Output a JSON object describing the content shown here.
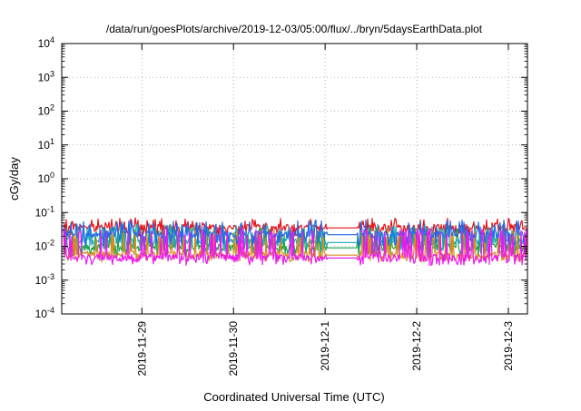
{
  "chart_data": {
    "type": "line",
    "title": "/data/run/goesPlots/archive/2019-12-03/05:00/flux/../bryn/5daysEarthData.plot",
    "xlabel": "Coordinated Universal Time (UTC)",
    "ylabel": "cGy/day",
    "yscale": "log",
    "ylim": [
      0.0001,
      10000
    ],
    "yticks": [
      {
        "value": 0.0001,
        "base": "10",
        "exp": "-4"
      },
      {
        "value": 0.001,
        "base": "10",
        "exp": "-3"
      },
      {
        "value": 0.01,
        "base": "10",
        "exp": "-2"
      },
      {
        "value": 0.1,
        "base": "10",
        "exp": "-1"
      },
      {
        "value": 1,
        "base": "10",
        "exp": "0"
      },
      {
        "value": 10,
        "base": "10",
        "exp": "1"
      },
      {
        "value": 100,
        "base": "10",
        "exp": "2"
      },
      {
        "value": 1000,
        "base": "10",
        "exp": "3"
      },
      {
        "value": 10000,
        "base": "10",
        "exp": "4"
      }
    ],
    "xlim": [
      "2019-11-28T03:00",
      "2019-12-03T05:00"
    ],
    "xticks": [
      "2019-11-29",
      "2019-11-30",
      "2019-12-1",
      "2019-12-2",
      "2019-12-3"
    ],
    "grid": true,
    "legend": "none",
    "data_gap": [
      "2019-12-01T00:30",
      "2019-12-01T08:30"
    ],
    "series": [
      {
        "color": "#e8141a",
        "typical": 0.035,
        "spike_max": 0.07,
        "spike_min": 0.022
      },
      {
        "color": "#1ba34a",
        "typical": 0.009,
        "spike_max": 0.035,
        "spike_min": 0.006
      },
      {
        "color": "#1aa8b8",
        "typical": 0.013,
        "spike_max": 0.045,
        "spike_min": 0.008
      },
      {
        "color": "#d98a1a",
        "typical": 0.0055,
        "spike_max": 0.03,
        "spike_min": 0.004
      },
      {
        "color": "#2468e8",
        "typical": 0.022,
        "spike_max": 0.06,
        "spike_min": 0.012
      },
      {
        "color": "#ee16ee",
        "typical": 0.0045,
        "spike_max": 0.035,
        "spike_min": 0.0032
      }
    ]
  }
}
